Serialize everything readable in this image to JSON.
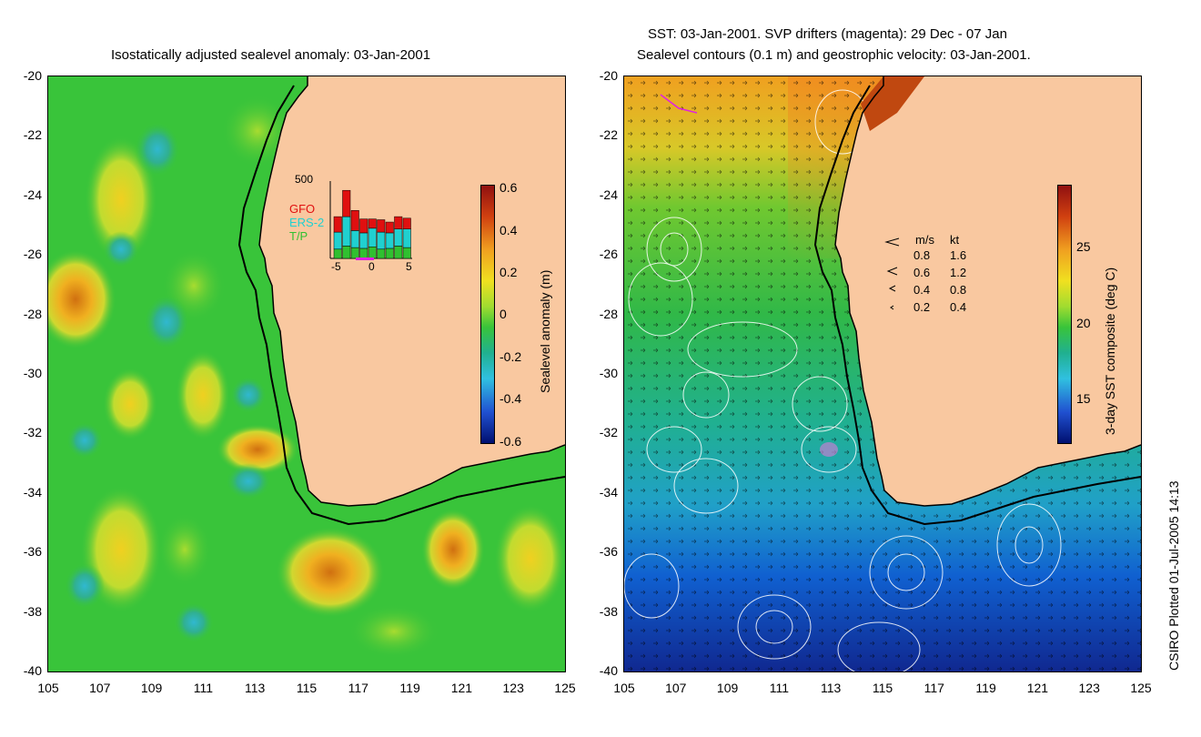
{
  "left_panel": {
    "title": "Isostatically adjusted sealevel anomaly: 03-Jan-2001",
    "colorbar": {
      "label": "Sealevel anomaly (m)",
      "ticks": [
        "0.6",
        "0.4",
        "0.2",
        "0",
        "-0.2",
        "-0.4",
        "-0.6"
      ]
    },
    "inset": {
      "ymax_label": "500",
      "legend": [
        "GFO",
        "ERS-2",
        "T/P"
      ],
      "legend_colors": [
        "#e01010",
        "#20d0d0",
        "#30c030"
      ],
      "xticks": [
        "-5",
        "0",
        "5"
      ],
      "bars": [
        {
          "tp": 60,
          "ers": 110,
          "gfo": 100
        },
        {
          "tp": 80,
          "ers": 190,
          "gfo": 170
        },
        {
          "tp": 70,
          "ers": 110,
          "gfo": 130
        },
        {
          "tp": 65,
          "ers": 100,
          "gfo": 90
        },
        {
          "tp": 75,
          "ers": 120,
          "gfo": 60
        },
        {
          "tp": 60,
          "ers": 110,
          "gfo": 80
        },
        {
          "tp": 65,
          "ers": 100,
          "gfo": 70
        },
        {
          "tp": 80,
          "ers": 110,
          "gfo": 80
        },
        {
          "tp": 70,
          "ers": 120,
          "gfo": 70
        }
      ]
    }
  },
  "right_panel": {
    "title_line1": "SST: 03-Jan-2001. SVP drifters (magenta): 29 Dec - 07 Jan",
    "title_line2": "Sealevel contours (0.1 m) and geostrophic velocity: 03-Jan-2001.",
    "colorbar": {
      "label": "3-day SST composite (deg C)",
      "ticks": [
        "25",
        "20",
        "15"
      ]
    },
    "speed_legend": {
      "header_ms": "m/s",
      "header_kt": "kt",
      "rows": [
        {
          "ms": "0.8",
          "kt": "1.6"
        },
        {
          "ms": "0.6",
          "kt": "1.2"
        },
        {
          "ms": "0.4",
          "kt": "0.8"
        },
        {
          "ms": "0.2",
          "kt": "0.4"
        }
      ]
    }
  },
  "axes": {
    "y_ticks": [
      "-20",
      "-22",
      "-24",
      "-26",
      "-28",
      "-30",
      "-32",
      "-34",
      "-36",
      "-38",
      "-40"
    ],
    "x_ticks": [
      "105",
      "107",
      "109",
      "111",
      "113",
      "115",
      "117",
      "119",
      "121",
      "123",
      "125"
    ]
  },
  "credit": "CSIRO Plotted 01-Jul-2005 14:13",
  "colors": {
    "land": "#f9c8a0",
    "ocean_left": "#39c43a",
    "coast": "#000000"
  }
}
